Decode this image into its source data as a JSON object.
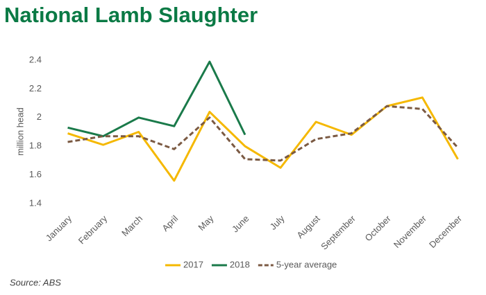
{
  "chart_data": {
    "type": "line",
    "title": "National Lamb Slaughter",
    "y_label": "million head",
    "source": "Source: ABS",
    "categories": [
      "January",
      "February",
      "March",
      "April",
      "May",
      "June",
      "July",
      "August",
      "September",
      "October",
      "November",
      "December"
    ],
    "series": [
      {
        "name": "2017",
        "color": "#f5b800",
        "style": "solid",
        "values": [
          1.89,
          1.81,
          1.9,
          1.56,
          2.04,
          1.8,
          1.65,
          1.97,
          1.88,
          2.08,
          2.14,
          1.71
        ]
      },
      {
        "name": "2018",
        "color": "#1a7a4a",
        "style": "solid",
        "values": [
          1.93,
          1.87,
          2.0,
          1.94,
          2.39,
          1.88,
          null,
          null,
          null,
          null,
          null,
          null
        ]
      },
      {
        "name": "5-year average",
        "color": "#7b5a43",
        "style": "dashed",
        "values": [
          1.83,
          1.87,
          1.87,
          1.78,
          2.0,
          1.71,
          1.7,
          1.85,
          1.89,
          2.08,
          2.06,
          1.79
        ]
      }
    ],
    "ylim": [
      1.4,
      2.4
    ],
    "yticks": [
      1.4,
      1.6,
      1.8,
      2,
      2.2,
      2.4
    ],
    "grid": false,
    "legend": "bottom"
  }
}
